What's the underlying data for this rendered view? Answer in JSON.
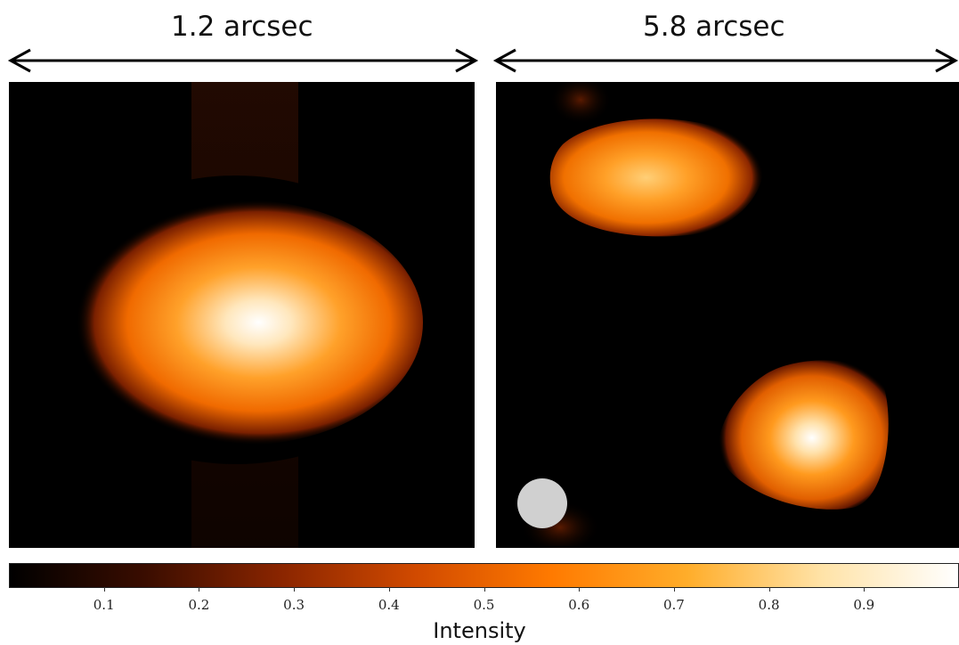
{
  "labels": {
    "left_scale": "1.2 arcsec",
    "right_scale": "5.8 arcsec"
  },
  "colorbar": {
    "title": "Intensity",
    "ticks": [
      "0.1",
      "0.2",
      "0.3",
      "0.4",
      "0.5",
      "0.6",
      "0.7",
      "0.8",
      "0.9"
    ],
    "range": [
      0,
      1
    ],
    "colors": [
      "#000000",
      "#3a0d00",
      "#8a2500",
      "#d14a00",
      "#ff7a00",
      "#ffad2a",
      "#ffe3a8",
      "#ffffff"
    ]
  },
  "panels": {
    "left": {
      "background": "#000000"
    },
    "right": {
      "background": "#000000",
      "beam_color": "#d0d0d0"
    }
  }
}
